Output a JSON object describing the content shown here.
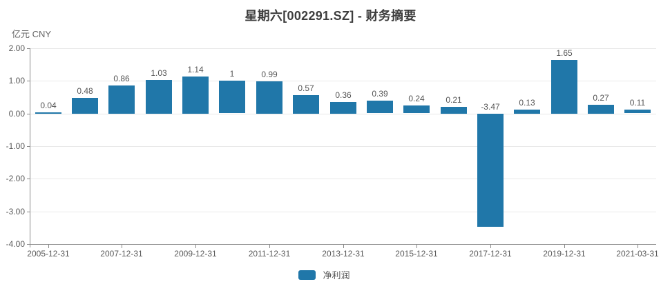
{
  "header": {
    "title": "星期六[002291.SZ] - 财务摘要",
    "unit_label": "亿元 CNY"
  },
  "legend": {
    "items": [
      {
        "label": "净利润"
      }
    ]
  },
  "colors": {
    "bar": "#2077a9",
    "grid": "#e8e8e8",
    "axis": "#888888",
    "tick_text": "#595959",
    "value_text": "#555555",
    "title_text": "#3d3d3d"
  },
  "chart_data": {
    "type": "bar",
    "title": "星期六[002291.SZ] - 财务摘要",
    "ylabel": "亿元 CNY",
    "legend_position": "bottom",
    "grid": true,
    "series": [
      {
        "name": "净利润",
        "values": [
          0.04,
          0.48,
          0.86,
          1.03,
          1.14,
          1,
          0.99,
          0.57,
          0.36,
          0.39,
          0.24,
          0.21,
          -3.47,
          0.13,
          1.65,
          0.27,
          0.11
        ]
      }
    ],
    "value_labels": [
      "0.04",
      "0.48",
      "0.86",
      "1.03",
      "1.14",
      "1",
      "0.99",
      "0.57",
      "0.36",
      "0.39",
      "0.24",
      "0.21",
      "-3.47",
      "0.13",
      "1.65",
      "0.27",
      "0.11"
    ],
    "x_tick_labels": [
      "2005-12-31",
      "2007-12-31",
      "2009-12-31",
      "2011-12-31",
      "2013-12-31",
      "2015-12-31",
      "2017-12-31",
      "2019-12-31",
      "2021-03-31"
    ],
    "x_tick_indices": [
      0,
      2,
      4,
      6,
      8,
      10,
      12,
      14,
      16
    ],
    "y_ticks": [
      2,
      1,
      0,
      -1,
      -2,
      -3,
      -4
    ],
    "y_tick_labels": [
      "2.00",
      "1.00",
      "0.00",
      "-1.00",
      "-2.00",
      "-3.00",
      "-4.00"
    ],
    "ylim": [
      -4,
      2
    ]
  }
}
